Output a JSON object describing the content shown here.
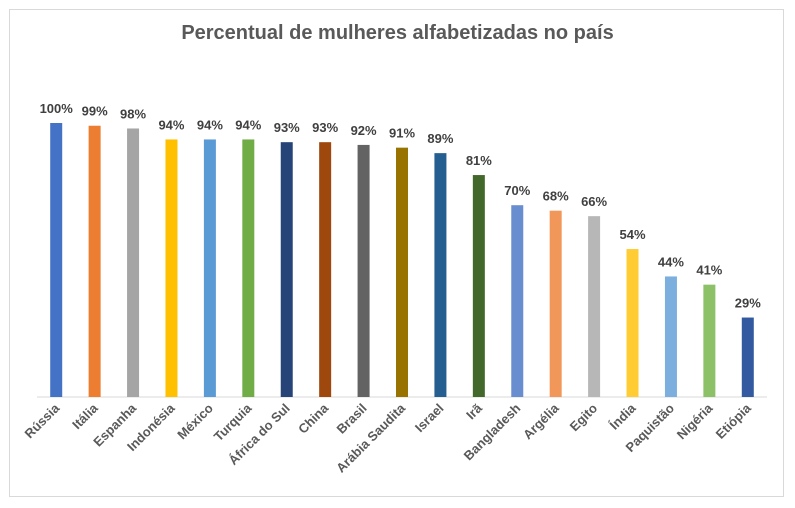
{
  "chart_data": {
    "type": "bar",
    "title": "Percentual de mulheres alfabetizadas no país",
    "xlabel": "",
    "ylabel": "",
    "ylim": [
      0,
      100
    ],
    "grid": false,
    "legend": "none",
    "categories": [
      "Rússia",
      "Itália",
      "Espanha",
      "Indonésia",
      "México",
      "Turquia",
      "África do Sul",
      "China",
      "Brasil",
      "Arábia Saudita",
      "Israel",
      "Irã",
      "Bangladesh",
      "Argélia",
      "Egito",
      "Índia",
      "Paquistão",
      "Nigéria",
      "Etiópia"
    ],
    "values": [
      100,
      99,
      98,
      94,
      94,
      94,
      93,
      93,
      92,
      91,
      89,
      81,
      70,
      68,
      66,
      54,
      44,
      41,
      29
    ],
    "value_labels": [
      "100%",
      "99%",
      "98%",
      "94%",
      "94%",
      "94%",
      "93%",
      "93%",
      "92%",
      "91%",
      "89%",
      "81%",
      "70%",
      "68%",
      "66%",
      "54%",
      "44%",
      "41%",
      "29%"
    ],
    "colors": [
      "#4472c4",
      "#ed7d31",
      "#a5a5a5",
      "#ffc000",
      "#5b9bd5",
      "#70ad47",
      "#264478",
      "#9e480e",
      "#636363",
      "#997300",
      "#255e91",
      "#43682b",
      "#698ed0",
      "#f1975a",
      "#b7b7b7",
      "#ffcd33",
      "#7cafdd",
      "#8cc168",
      "#335aa1"
    ]
  }
}
